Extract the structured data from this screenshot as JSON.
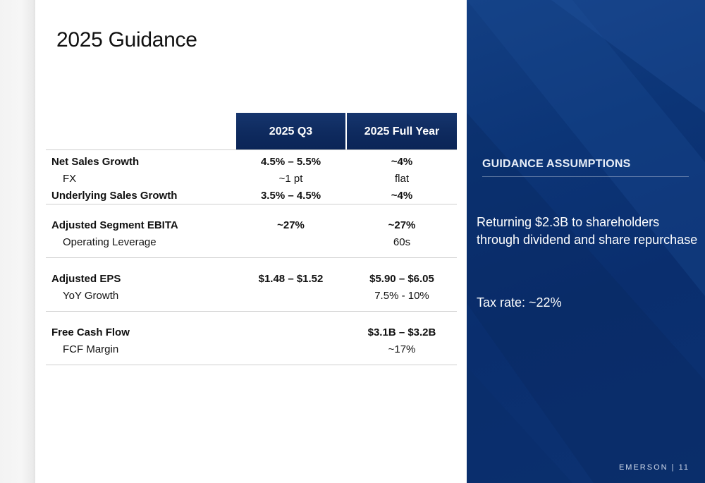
{
  "slide": {
    "title": "2025 Guidance",
    "table": {
      "columns": [
        "2025 Q3",
        "2025 Full Year"
      ],
      "groups": [
        {
          "rows": [
            {
              "label": "Net Sales Growth",
              "q3": "4.5% – 5.5%",
              "fy": "~4%",
              "bold": true
            },
            {
              "label": "FX",
              "q3": "~1 pt",
              "fy": "flat",
              "bold": false
            },
            {
              "label": "Underlying Sales Growth",
              "q3": "3.5% – 4.5%",
              "fy": "~4%",
              "bold": true
            }
          ]
        },
        {
          "rows": [
            {
              "label": "Adjusted Segment EBITA",
              "q3": "~27%",
              "fy": "~27%",
              "bold": true
            },
            {
              "label": "Operating Leverage",
              "q3": "",
              "fy": "60s",
              "bold": false
            }
          ]
        },
        {
          "rows": [
            {
              "label": "Adjusted EPS",
              "q3": "$1.48 – $1.52",
              "fy": "$5.90 – $6.05",
              "bold": true
            },
            {
              "label": "YoY Growth",
              "q3": "",
              "fy": "7.5% - 10%",
              "bold": false
            }
          ]
        },
        {
          "rows": [
            {
              "label": "Free Cash Flow",
              "q3": "",
              "fy": "$3.1B – $3.2B",
              "bold": true
            },
            {
              "label": "FCF Margin",
              "q3": "",
              "fy": "~17%",
              "bold": false
            }
          ]
        }
      ]
    }
  },
  "assumptions": {
    "heading": "GUIDANCE ASSUMPTIONS",
    "items": [
      "Returning $2.3B to shareholders through dividend and share repurchase",
      "Tax rate: ~22%"
    ]
  },
  "footer": {
    "brand": "EMERSON",
    "separator": "|",
    "page_number": "11"
  },
  "colors": {
    "panel_blue": "#0c3577",
    "header_blue": "#0e2a5e",
    "rule_gray": "#cfcfcf"
  }
}
